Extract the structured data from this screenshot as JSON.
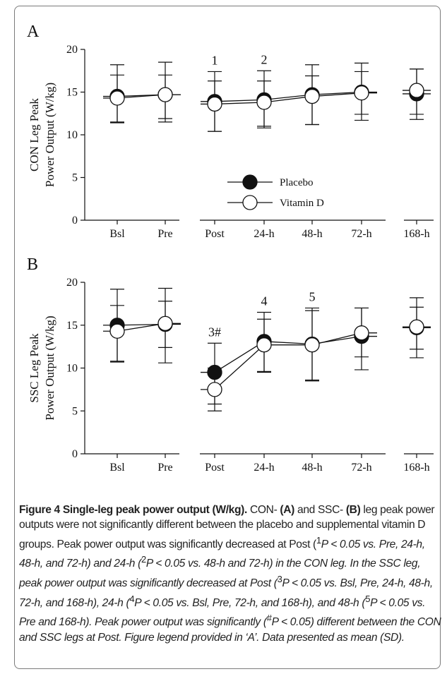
{
  "chart_data": [
    {
      "type": "line",
      "panel_label": "A",
      "ylabel_line1": "CON Leg Peak",
      "ylabel_line2": "Power Output (W/kg)",
      "categories": [
        "Bsl",
        "Pre",
        "Post",
        "24-h",
        "48-h",
        "72-h",
        "168-h"
      ],
      "ylim": [
        0,
        20
      ],
      "yticks": [
        0,
        5,
        10,
        15,
        20
      ],
      "line_segments": [
        [
          0,
          1
        ],
        [
          2,
          3,
          4,
          5
        ],
        [
          6
        ]
      ],
      "series": [
        {
          "name": "Placebo",
          "marker": "filled",
          "values": [
            14.5,
            14.7,
            13.9,
            14.1,
            14.7,
            15.0,
            14.8
          ],
          "err_upper": [
            3.7,
            3.8,
            3.5,
            3.4,
            3.5,
            3.4,
            2.9
          ],
          "err_lower": [
            3.0,
            3.2,
            3.5,
            3.1,
            3.5,
            3.3,
            3.0
          ]
        },
        {
          "name": "Vitamin D",
          "marker": "open",
          "values": [
            14.3,
            14.7,
            13.6,
            13.8,
            14.5,
            14.9,
            15.2
          ],
          "err_upper": [
            2.7,
            2.3,
            2.7,
            2.5,
            2.4,
            2.5,
            2.5
          ],
          "err_lower": [
            2.9,
            2.8,
            3.2,
            3.0,
            3.3,
            2.5,
            2.8
          ]
        }
      ],
      "annotations": [
        {
          "category": "Post",
          "text": "1"
        },
        {
          "category": "24-h",
          "text": "2"
        }
      ],
      "legend": {
        "position": "center-bottom",
        "entries": [
          "Placebo",
          "Vitamin D"
        ]
      }
    },
    {
      "type": "line",
      "panel_label": "B",
      "ylabel_line1": "SSC Leg Peak",
      "ylabel_line2": "Power Output (W/kg)",
      "categories": [
        "Bsl",
        "Pre",
        "Post",
        "24-h",
        "48-h",
        "72-h",
        "168-h"
      ],
      "ylim": [
        0,
        20
      ],
      "yticks": [
        0,
        5,
        10,
        15,
        20
      ],
      "line_segments": [
        [
          0,
          1
        ],
        [
          2,
          3,
          4,
          5
        ],
        [
          6
        ]
      ],
      "series": [
        {
          "name": "Placebo",
          "marker": "filled",
          "values": [
            15.0,
            15.1,
            9.5,
            13.1,
            12.8,
            13.7,
            14.7
          ],
          "err_upper": [
            4.2,
            4.2,
            3.4,
            3.4,
            4.2,
            3.3,
            3.5
          ],
          "err_lower": [
            4.3,
            4.5,
            3.7,
            3.6,
            4.2,
            2.4,
            3.5
          ]
        },
        {
          "name": "Vitamin D",
          "marker": "open",
          "values": [
            14.3,
            15.2,
            7.5,
            12.7,
            12.7,
            14.1,
            14.8
          ],
          "err_upper": [
            3.0,
            2.6,
            2.5,
            3.0,
            4.0,
            2.9,
            2.3
          ],
          "err_lower": [
            3.5,
            2.8,
            2.5,
            3.1,
            4.2,
            4.3,
            2.6
          ]
        }
      ],
      "annotations": [
        {
          "category": "Post",
          "text": "3#"
        },
        {
          "category": "24-h",
          "text": "4"
        },
        {
          "category": "48-h",
          "text": "5"
        }
      ]
    }
  ],
  "caption": {
    "title": "Figure 4 Single-leg peak power output (W/kg).",
    "p1": " CON- ",
    "a": "(A)",
    "p2": " and SSC- ",
    "b": "(B)",
    "p3": " leg peak power outputs were not significantly different between the placebo and supplemental vitamin D groups. Peak power output was significantly decreased at Post (",
    "s1": "1",
    "p4": "P < 0.05 vs. Pre, 24-h, 48-h, and 72-h) and 24-h (",
    "s2": "2",
    "p5": "P < 0.05 vs. 48-h and 72-h) in the CON leg. In the SSC leg, peak power output was significantly decreased at Post (",
    "s3": "3",
    "p6": "P < 0.05 vs. Bsl, Pre, 24-h, 48-h, 72-h, and 168-h), 24-h (",
    "s4": "4",
    "p7": "P < 0.05 vs. Bsl, Pre, 72-h, and 168-h), and 48-h (",
    "s5": "5",
    "p8": "P < 0.05 vs. Pre and 168-h). Peak power output was significantly (",
    "s6": "#",
    "p9": "P < 0.05) different between the CON and SSC legs at Post. Figure legend provided in ‘A’. Data presented as mean (SD)."
  }
}
